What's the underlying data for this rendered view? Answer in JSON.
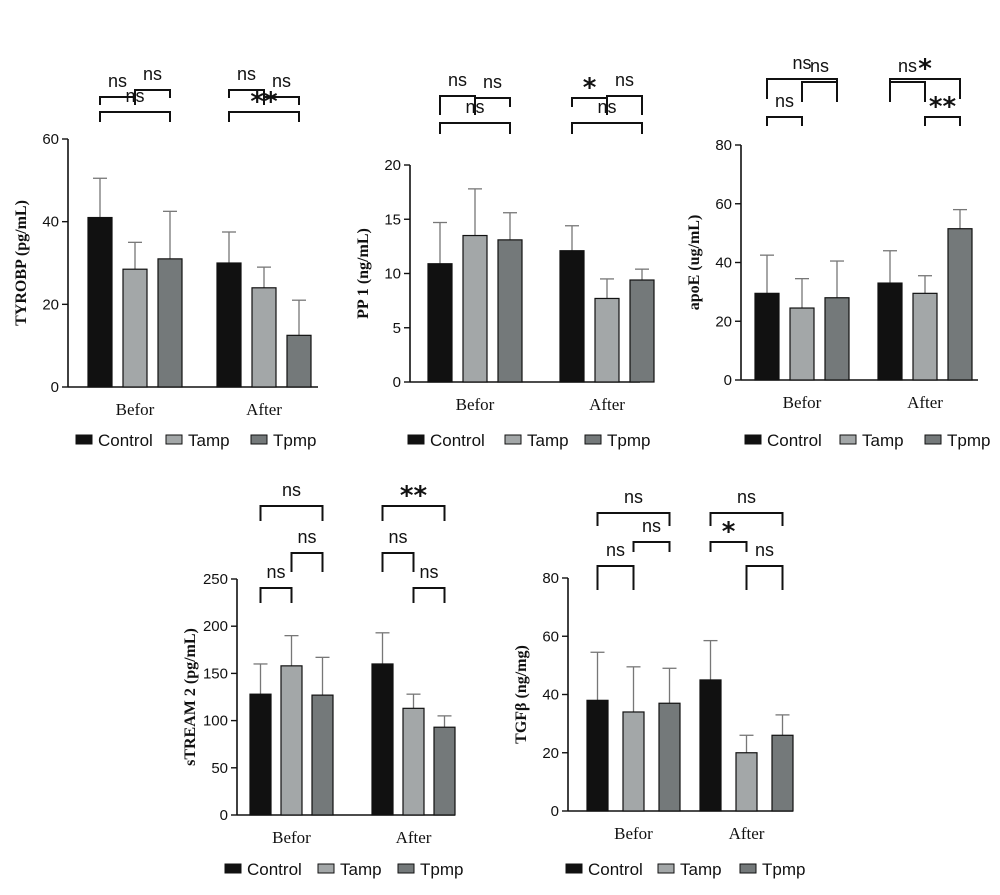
{
  "colors": {
    "Control": "#111111",
    "Tamp": "#a3a7a8",
    "Tpmp": "#74797a"
  },
  "chart_data": [
    {
      "type": "bar",
      "categories": [
        "Befor",
        "After"
      ],
      "ylabel": "TYROBP (pg/mL)",
      "ylim": [
        0,
        60
      ],
      "yticks": [
        0,
        20,
        40,
        60
      ],
      "series": [
        {
          "name": "Control",
          "values": [
            41,
            30
          ],
          "errors": [
            9.5,
            7.5
          ]
        },
        {
          "name": "Tamp",
          "values": [
            28.5,
            24
          ],
          "errors": [
            6.5,
            5
          ]
        },
        {
          "name": "Tpmp",
          "values": [
            31,
            12.5
          ],
          "errors": [
            11.5,
            8.5
          ]
        }
      ],
      "significance": [
        {
          "group": 0,
          "from": 0,
          "to": 2,
          "label": "ns"
        },
        {
          "group": 0,
          "from": 1,
          "to": 2,
          "label": "ns"
        },
        {
          "group": 0,
          "from": 0,
          "to": 1,
          "label": "ns"
        },
        {
          "group": 1,
          "from": 0,
          "to": 2,
          "label": "**"
        },
        {
          "group": 1,
          "from": 0,
          "to": 1,
          "label": "ns"
        },
        {
          "group": 1,
          "from": 1,
          "to": 2,
          "label": "ns"
        }
      ],
      "legend": [
        "Control",
        "Tamp",
        "Tpmp"
      ]
    },
    {
      "type": "bar",
      "categories": [
        "Befor",
        "After"
      ],
      "ylabel": "PP 1 (ng/mL)",
      "ylim": [
        0,
        20
      ],
      "yticks": [
        0,
        5,
        10,
        15,
        20
      ],
      "series": [
        {
          "name": "Control",
          "values": [
            10.9,
            12.1
          ],
          "errors": [
            3.8,
            2.3
          ]
        },
        {
          "name": "Tamp",
          "values": [
            13.5,
            7.7
          ],
          "errors": [
            4.3,
            1.8
          ]
        },
        {
          "name": "Tpmp",
          "values": [
            13.1,
            9.4
          ],
          "errors": [
            2.5,
            1.0
          ]
        }
      ],
      "significance": [
        {
          "group": 0,
          "from": 0,
          "to": 2,
          "label": "ns"
        },
        {
          "group": 0,
          "from": 1,
          "to": 2,
          "label": "ns"
        },
        {
          "group": 0,
          "from": 0,
          "to": 1,
          "label": "ns"
        },
        {
          "group": 1,
          "from": 0,
          "to": 2,
          "label": "ns"
        },
        {
          "group": 1,
          "from": 0,
          "to": 1,
          "label": "*"
        },
        {
          "group": 1,
          "from": 1,
          "to": 2,
          "label": "ns"
        }
      ],
      "legend": [
        "Control",
        "Tamp",
        "Tpmp"
      ]
    },
    {
      "type": "bar",
      "categories": [
        "Befor",
        "After"
      ],
      "ylabel": "apoE (ug/mL)",
      "ylim": [
        0,
        80
      ],
      "yticks": [
        0,
        20,
        40,
        60,
        80
      ],
      "series": [
        {
          "name": "Control",
          "values": [
            29.5,
            33
          ],
          "errors": [
            13,
            11
          ]
        },
        {
          "name": "Tamp",
          "values": [
            24.5,
            29.5
          ],
          "errors": [
            10,
            6
          ]
        },
        {
          "name": "Tpmp",
          "values": [
            28,
            51.5
          ],
          "errors": [
            12.5,
            6.5
          ]
        }
      ],
      "significance": [
        {
          "group": 0,
          "from": 0,
          "to": 2,
          "label": "ns"
        },
        {
          "group": 0,
          "from": 1,
          "to": 2,
          "label": "ns"
        },
        {
          "group": 0,
          "from": 0,
          "to": 1,
          "label": "ns"
        },
        {
          "group": 1,
          "from": 0,
          "to": 2,
          "label": "*"
        },
        {
          "group": 1,
          "from": 0,
          "to": 1,
          "label": "ns"
        },
        {
          "group": 1,
          "from": 1,
          "to": 2,
          "label": "**"
        }
      ],
      "legend": [
        "Control",
        "Tamp",
        "Tpmp"
      ]
    },
    {
      "type": "bar",
      "categories": [
        "Befor",
        "After"
      ],
      "ylabel": "sTREAM 2 (pg/mL)",
      "ylim": [
        0,
        250
      ],
      "yticks": [
        0,
        50,
        100,
        150,
        200,
        250
      ],
      "series": [
        {
          "name": "Control",
          "values": [
            128,
            160
          ],
          "errors": [
            32,
            33
          ]
        },
        {
          "name": "Tamp",
          "values": [
            158,
            113
          ],
          "errors": [
            32,
            15
          ]
        },
        {
          "name": "Tpmp",
          "values": [
            127,
            93
          ],
          "errors": [
            40,
            12
          ]
        }
      ],
      "significance": [
        {
          "group": 0,
          "from": 0,
          "to": 2,
          "label": "ns"
        },
        {
          "group": 0,
          "from": 1,
          "to": 2,
          "label": "ns"
        },
        {
          "group": 0,
          "from": 0,
          "to": 1,
          "label": "ns"
        },
        {
          "group": 1,
          "from": 0,
          "to": 2,
          "label": "**"
        },
        {
          "group": 1,
          "from": 0,
          "to": 1,
          "label": "ns"
        },
        {
          "group": 1,
          "from": 1,
          "to": 2,
          "label": "ns"
        }
      ],
      "legend": [
        "Control",
        "Tamp",
        "Tpmp"
      ]
    },
    {
      "type": "bar",
      "categories": [
        "Befor",
        "After"
      ],
      "ylabel": "TGFβ (ng/mg)",
      "ylim": [
        0,
        80
      ],
      "yticks": [
        0,
        20,
        40,
        60,
        80
      ],
      "series": [
        {
          "name": "Control",
          "values": [
            38,
            45
          ],
          "errors": [
            16.5,
            13.5
          ]
        },
        {
          "name": "Tamp",
          "values": [
            34,
            20
          ],
          "errors": [
            15.5,
            6
          ]
        },
        {
          "name": "Tpmp",
          "values": [
            37,
            26
          ],
          "errors": [
            12,
            7
          ]
        }
      ],
      "significance": [
        {
          "group": 0,
          "from": 0,
          "to": 2,
          "label": "ns"
        },
        {
          "group": 0,
          "from": 1,
          "to": 2,
          "label": "ns"
        },
        {
          "group": 0,
          "from": 0,
          "to": 1,
          "label": "ns"
        },
        {
          "group": 1,
          "from": 0,
          "to": 2,
          "label": "ns"
        },
        {
          "group": 1,
          "from": 0,
          "to": 1,
          "label": "*"
        },
        {
          "group": 1,
          "from": 1,
          "to": 2,
          "label": "ns"
        }
      ],
      "legend": [
        "Control",
        "Tamp",
        "Tpmp"
      ]
    }
  ]
}
